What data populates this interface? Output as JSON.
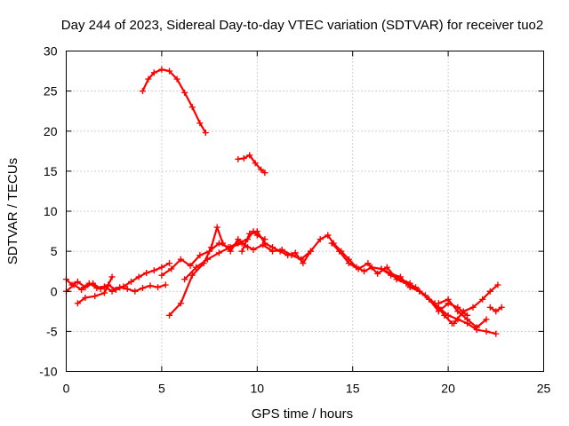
{
  "chart_data": {
    "type": "scatter",
    "title": "Day 244 of 2023, Sidereal Day-to-day VTEC variation (SDTVAR) for receiver tuo2",
    "xlabel": "GPS time / hours",
    "ylabel": "SDTVAR / TECUs",
    "xlim": [
      0,
      25
    ],
    "ylim": [
      -10,
      30
    ],
    "xticks": [
      0,
      5,
      10,
      15,
      20,
      25
    ],
    "yticks": [
      -10,
      -5,
      0,
      5,
      10,
      15,
      20,
      25,
      30
    ],
    "xtick_labels": [
      "0",
      "5",
      "10",
      "15",
      "20",
      "25"
    ],
    "ytick_labels": [
      "-10",
      "-5",
      "0",
      "5",
      "10",
      "15",
      "20",
      "25",
      "30"
    ],
    "grid": true,
    "marker": "plus",
    "color": "#ff0000",
    "series": [
      {
        "name": "segment-1",
        "x": [
          0.0,
          0.3,
          0.6,
          1.0,
          1.4,
          1.8,
          2.2,
          2.6,
          3.0,
          3.4,
          3.8,
          4.2,
          4.6,
          5.0,
          5.4
        ],
        "y": [
          1.5,
          0.8,
          1.2,
          0.5,
          1.0,
          0.3,
          0.8,
          0.2,
          0.6,
          1.2,
          1.8,
          2.3,
          2.6,
          3.0,
          3.5
        ]
      },
      {
        "name": "segment-2",
        "x": [
          0.0,
          0.4,
          0.8,
          1.2,
          1.6,
          2.0,
          2.4,
          2.8,
          3.2,
          3.6,
          4.0,
          4.4,
          4.8,
          5.2
        ],
        "y": [
          0.0,
          0.8,
          0.2,
          1.0,
          0.4,
          0.6,
          0.0,
          0.5,
          0.3,
          0.0,
          0.4,
          0.7,
          0.5,
          0.8
        ]
      },
      {
        "name": "segment-3",
        "x": [
          0.6,
          1.0,
          1.5,
          2.0,
          2.4
        ],
        "y": [
          -1.5,
          -0.8,
          -0.6,
          -0.2,
          1.8
        ]
      },
      {
        "name": "segment-4",
        "x": [
          5.0,
          5.5,
          6.0,
          6.5,
          7.0,
          7.5,
          8.0,
          8.5,
          9.0,
          9.5,
          9.8,
          10.0,
          10.4
        ],
        "y": [
          2.0,
          2.8,
          4.0,
          3.2,
          4.5,
          5.0,
          6.0,
          5.5,
          6.0,
          6.5,
          7.5,
          7.0,
          6.5
        ]
      },
      {
        "name": "segment-5",
        "x": [
          5.4,
          6.0,
          6.6,
          7.2,
          7.6,
          7.9,
          8.2,
          8.6,
          9.0,
          9.5
        ],
        "y": [
          -3.0,
          -1.5,
          2.0,
          3.5,
          5.5,
          8.0,
          6.0,
          5.0,
          6.5,
          5.5
        ]
      },
      {
        "name": "segment-6",
        "x": [
          6.2,
          6.8,
          7.4,
          8.0,
          8.6,
          9.2,
          9.8,
          10.3,
          10.8,
          11.3,
          11.8,
          12.3,
          12.8,
          13.3,
          13.7
        ],
        "y": [
          1.5,
          3.0,
          4.0,
          4.8,
          5.5,
          6.0,
          5.2,
          5.8,
          5.0,
          5.2,
          4.5,
          4.0,
          5.0,
          6.5,
          7.0
        ]
      },
      {
        "name": "segment-7",
        "x": [
          9.2,
          9.6,
          10.0,
          10.4,
          10.8,
          11.2,
          11.6,
          12.0,
          12.4,
          12.8
        ],
        "y": [
          5.0,
          7.2,
          7.5,
          6.0,
          5.5,
          5.0,
          4.5,
          4.8,
          3.5,
          5.0
        ]
      },
      {
        "name": "segment-8",
        "x": [
          13.7,
          14.0,
          14.4,
          14.8,
          15.2,
          15.6,
          16.0,
          16.5,
          17.0,
          17.5,
          18.0,
          18.5,
          19.0,
          19.5,
          20.0,
          20.5,
          21.0,
          21.5,
          22.0,
          22.5
        ],
        "y": [
          7.0,
          6.0,
          5.0,
          4.0,
          3.0,
          2.5,
          3.0,
          2.8,
          2.0,
          1.5,
          1.0,
          0.0,
          -1.0,
          -2.0,
          -3.0,
          -3.5,
          -4.0,
          -4.8,
          -5.0,
          -5.3
        ]
      },
      {
        "name": "segment-9",
        "x": [
          13.9,
          14.3,
          14.8,
          15.3,
          15.8,
          16.3,
          16.8,
          17.3,
          17.8,
          18.3,
          18.8,
          19.3,
          19.8,
          20.2
        ],
        "y": [
          6.0,
          5.0,
          3.5,
          2.8,
          3.5,
          2.2,
          3.0,
          1.5,
          1.0,
          0.5,
          -0.5,
          -1.5,
          -3.0,
          -4.0
        ]
      },
      {
        "name": "segment-10",
        "x": [
          16.5,
          17.0,
          17.5,
          18.0,
          18.5,
          19.0,
          19.5,
          20.0,
          20.5,
          21.0
        ],
        "y": [
          2.8,
          2.2,
          1.8,
          0.5,
          0.0,
          -1.0,
          -2.5,
          -1.5,
          -2.0,
          -3.0
        ]
      },
      {
        "name": "segment-11",
        "x": [
          20.3,
          20.8,
          21.3,
          21.8,
          22.2,
          22.6
        ],
        "y": [
          -4.0,
          -2.5,
          -2.0,
          -1.0,
          0.0,
          0.8
        ]
      },
      {
        "name": "segment-12",
        "x": [
          19.5,
          20.0,
          20.5,
          21.0,
          21.5,
          22.0
        ],
        "y": [
          -1.5,
          -1.0,
          -2.5,
          -3.5,
          -4.5,
          -3.5
        ]
      },
      {
        "name": "segment-13",
        "x": [
          22.2,
          22.5,
          22.8
        ],
        "y": [
          -2.0,
          -2.5,
          -2.0
        ]
      },
      {
        "name": "segment-14",
        "x": [
          4.0,
          4.3,
          4.6,
          5.0,
          5.4,
          5.8,
          6.2,
          6.6,
          7.0,
          7.3
        ],
        "y": [
          25.0,
          26.5,
          27.3,
          27.7,
          27.5,
          26.5,
          24.8,
          23.0,
          21.0,
          19.8
        ]
      },
      {
        "name": "segment-15",
        "x": [
          9.0,
          9.3,
          9.6,
          9.9,
          10.2,
          10.4
        ],
        "y": [
          16.5,
          16.6,
          17.0,
          16.0,
          15.2,
          14.8
        ]
      }
    ]
  }
}
